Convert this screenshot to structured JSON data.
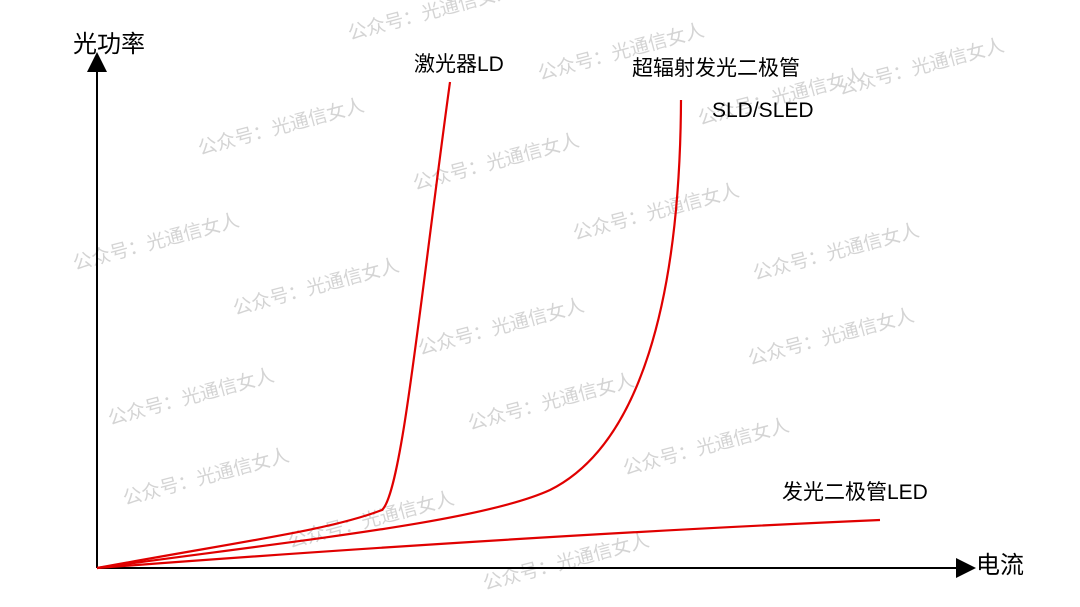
{
  "axes": {
    "y_label": "光功率",
    "x_label": "电流"
  },
  "curves": [
    {
      "label": "激光器LD"
    },
    {
      "label": "超辐射发光二极管",
      "label_line2": "SLD/SLED"
    },
    {
      "label": "发光二极管LED"
    }
  ],
  "watermark": "公众号：光通信女人"
}
